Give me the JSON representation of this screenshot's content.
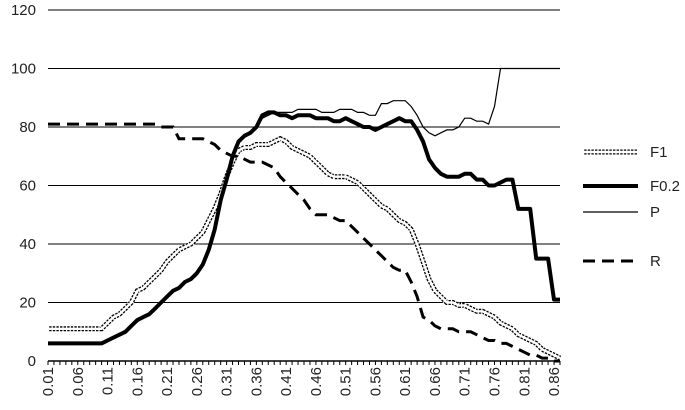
{
  "chart_data": {
    "type": "line",
    "title": "",
    "xlabel": "",
    "ylabel": "",
    "ylim": [
      0,
      120
    ],
    "yticks": [
      "0",
      "20",
      "40",
      "60",
      "80",
      "100",
      "120"
    ],
    "xticks": [
      "0.01",
      "0.06",
      "0.11",
      "0.16",
      "0.21",
      "0.26",
      "0.31",
      "0.36",
      "0.41",
      "0.46",
      "0.51",
      "0.56",
      "0.61",
      "0.66",
      "0.71",
      "0.76",
      "0.81",
      "0.86"
    ],
    "x": [
      0.01,
      0.02,
      0.03,
      0.04,
      0.05,
      0.06,
      0.07,
      0.08,
      0.09,
      0.1,
      0.11,
      0.12,
      0.13,
      0.14,
      0.15,
      0.16,
      0.17,
      0.18,
      0.19,
      0.2,
      0.21,
      0.22,
      0.23,
      0.24,
      0.25,
      0.26,
      0.27,
      0.28,
      0.29,
      0.3,
      0.31,
      0.32,
      0.33,
      0.34,
      0.35,
      0.36,
      0.37,
      0.38,
      0.39,
      0.4,
      0.41,
      0.42,
      0.43,
      0.44,
      0.45,
      0.46,
      0.47,
      0.48,
      0.49,
      0.5,
      0.51,
      0.52,
      0.53,
      0.54,
      0.55,
      0.56,
      0.57,
      0.58,
      0.59,
      0.6,
      0.61,
      0.62,
      0.63,
      0.64,
      0.65,
      0.66,
      0.67,
      0.68,
      0.69,
      0.7,
      0.71,
      0.72,
      0.73,
      0.74,
      0.75,
      0.76,
      0.77,
      0.78,
      0.79,
      0.8,
      0.81,
      0.82,
      0.83,
      0.84,
      0.85,
      0.86,
      0.87
    ],
    "grid": "horizontal",
    "legend_position": "right",
    "series": [
      {
        "name": "F1",
        "style": "double-dotted",
        "values": [
          11,
          11,
          11,
          11,
          11,
          11,
          11,
          11,
          11,
          11,
          13,
          15,
          16,
          18,
          20,
          24,
          25,
          27,
          29,
          31,
          34,
          36,
          38,
          39,
          40,
          42,
          44,
          48,
          52,
          57,
          63,
          68,
          72,
          73,
          73,
          74,
          74,
          74,
          75,
          76,
          75,
          73,
          72,
          71,
          70,
          68,
          66,
          64,
          63,
          63,
          63,
          62,
          61,
          59,
          57,
          55,
          53,
          52,
          50,
          48,
          47,
          45,
          40,
          34,
          28,
          24,
          22,
          20,
          20,
          19,
          19,
          18,
          17,
          17,
          16,
          15,
          13,
          12,
          11,
          9,
          8,
          7,
          6,
          4,
          3,
          2,
          1
        ]
      },
      {
        "name": "F0.2",
        "style": "thick",
        "values": [
          6,
          6,
          6,
          6,
          6,
          6,
          6,
          6,
          6,
          6,
          7,
          8,
          9,
          10,
          12,
          14,
          15,
          16,
          18,
          20,
          22,
          24,
          25,
          27,
          28,
          30,
          33,
          38,
          45,
          55,
          62,
          70,
          75,
          77,
          78,
          80,
          84,
          85,
          85,
          84,
          84,
          83,
          84,
          84,
          84,
          83,
          83,
          83,
          82,
          82,
          83,
          82,
          81,
          80,
          80,
          79,
          80,
          81,
          82,
          83,
          82,
          82,
          79,
          75,
          69,
          66,
          64,
          63,
          63,
          63,
          64,
          64,
          62,
          62,
          60,
          60,
          61,
          62,
          62,
          52,
          52,
          52,
          35,
          35,
          35,
          21,
          21
        ]
      },
      {
        "name": "P",
        "style": "thin",
        "values": [
          null,
          null,
          null,
          null,
          null,
          null,
          null,
          null,
          null,
          null,
          null,
          null,
          null,
          null,
          null,
          null,
          null,
          null,
          null,
          null,
          null,
          null,
          null,
          null,
          null,
          null,
          null,
          null,
          null,
          null,
          null,
          null,
          null,
          null,
          null,
          null,
          83,
          84,
          85,
          85,
          85,
          85,
          86,
          86,
          86,
          86,
          85,
          85,
          85,
          86,
          86,
          86,
          85,
          85,
          84,
          84,
          88,
          88,
          89,
          89,
          89,
          87,
          84,
          80,
          78,
          77,
          78,
          79,
          79,
          80,
          83,
          83,
          82,
          82,
          81,
          87,
          100,
          100,
          100,
          100,
          100,
          100,
          100,
          100,
          100,
          100,
          100
        ]
      },
      {
        "name": "R",
        "style": "dashed",
        "values": [
          81,
          81,
          81,
          81,
          81,
          81,
          81,
          81,
          81,
          81,
          81,
          81,
          81,
          81,
          81,
          81,
          81,
          81,
          81,
          80,
          80,
          80,
          76,
          76,
          76,
          76,
          76,
          75,
          74,
          72,
          71,
          70,
          70,
          69,
          68,
          68,
          68,
          67,
          66,
          63,
          61,
          59,
          57,
          55,
          52,
          50,
          50,
          50,
          49,
          48,
          48,
          46,
          44,
          42,
          40,
          38,
          36,
          34,
          32,
          31,
          31,
          27,
          22,
          15,
          14,
          12,
          11,
          11,
          11,
          10,
          10,
          10,
          9,
          8,
          7,
          7,
          6,
          6,
          5,
          4,
          3,
          2,
          2,
          1,
          1,
          0,
          0
        ]
      }
    ]
  }
}
